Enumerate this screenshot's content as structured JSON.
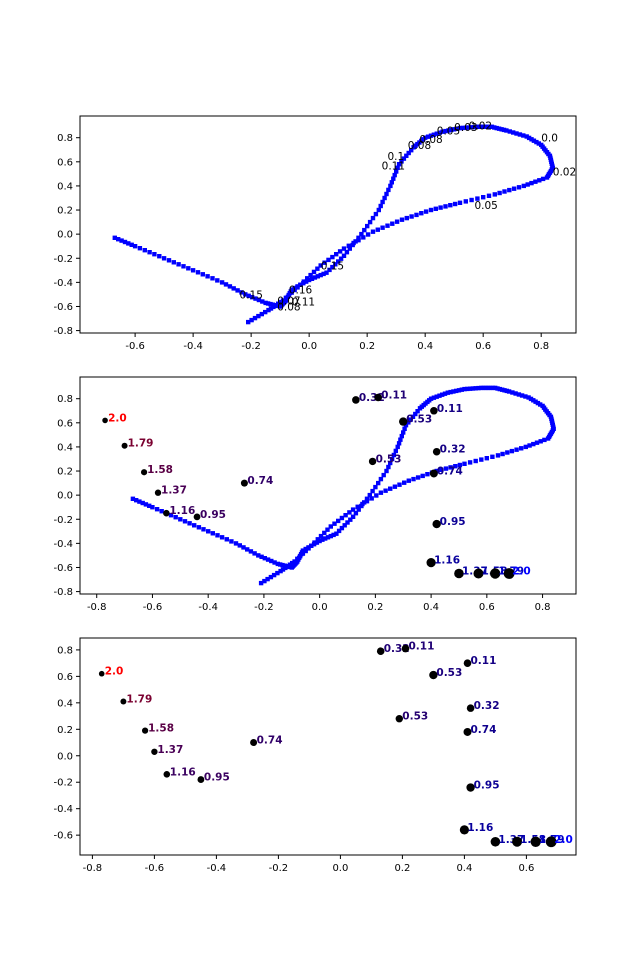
{
  "chart_data": [
    {
      "type": "scatter",
      "panel": "top",
      "title": "",
      "xlabel": "",
      "ylabel": "",
      "xlim": [
        -0.79,
        0.92
      ],
      "ylim": [
        -0.82,
        0.98
      ],
      "xticks": [
        "-0.6",
        "-0.4",
        "-0.2",
        "0.0",
        "0.2",
        "0.4",
        "0.6",
        "0.8"
      ],
      "yticks": [
        "-0.8",
        "-0.6",
        "-0.4",
        "-0.2",
        "0.0",
        "0.2",
        "0.4",
        "0.6",
        "0.8"
      ],
      "grid": false,
      "trajectory_color": "#0000ff",
      "annotations": [
        {
          "x": 0.8,
          "y": 0.8,
          "label": "0.0"
        },
        {
          "x": 0.84,
          "y": 0.52,
          "label": "0.02"
        },
        {
          "x": 0.55,
          "y": 0.9,
          "label": "0.02"
        },
        {
          "x": 0.5,
          "y": 0.89,
          "label": "0.03"
        },
        {
          "x": 0.44,
          "y": 0.86,
          "label": "0.05"
        },
        {
          "x": 0.38,
          "y": 0.79,
          "label": "0.08"
        },
        {
          "x": 0.34,
          "y": 0.74,
          "label": "0.08"
        },
        {
          "x": 0.57,
          "y": 0.24,
          "label": "0.05"
        },
        {
          "x": 0.27,
          "y": 0.65,
          "label": "0.1"
        },
        {
          "x": 0.25,
          "y": 0.57,
          "label": "0.11"
        },
        {
          "x": 0.04,
          "y": -0.26,
          "label": "0.15"
        },
        {
          "x": -0.24,
          "y": -0.5,
          "label": "0.15"
        },
        {
          "x": -0.07,
          "y": -0.46,
          "label": "0.16"
        },
        {
          "x": -0.11,
          "y": -0.55,
          "label": "0.07"
        },
        {
          "x": -0.06,
          "y": -0.56,
          "label": "0.11"
        },
        {
          "x": -0.11,
          "y": -0.6,
          "label": "0.08"
        }
      ]
    },
    {
      "type": "scatter",
      "panel": "middle",
      "title": "",
      "xlabel": "",
      "ylabel": "",
      "xlim": [
        -0.86,
        0.92
      ],
      "ylim": [
        -0.82,
        0.98
      ],
      "xticks": [
        "-0.8",
        "-0.6",
        "-0.4",
        "-0.2",
        "0.0",
        "0.2",
        "0.4",
        "0.6",
        "0.8"
      ],
      "yticks": [
        "-0.8",
        "-0.6",
        "-0.4",
        "-0.2",
        "0.0",
        "0.2",
        "0.4",
        "0.6",
        "0.8"
      ],
      "grid": false,
      "trajectory_color": "#0000ff",
      "points": [
        {
          "x": -0.77,
          "y": 0.62,
          "label": "2.0",
          "color": "#ff0000",
          "size": 2.8
        },
        {
          "x": -0.7,
          "y": 0.41,
          "label": "1.79",
          "color": "#7a0030",
          "size": 3.0
        },
        {
          "x": -0.63,
          "y": 0.19,
          "label": "1.58",
          "color": "#5a0045",
          "size": 3.1
        },
        {
          "x": -0.58,
          "y": 0.02,
          "label": "1.37",
          "color": "#4a0055",
          "size": 3.2
        },
        {
          "x": -0.55,
          "y": -0.15,
          "label": "1.16",
          "color": "#3a0060",
          "size": 3.3
        },
        {
          "x": -0.44,
          "y": -0.18,
          "label": "0.95",
          "color": "#3a0060",
          "size": 3.4
        },
        {
          "x": -0.27,
          "y": 0.1,
          "label": "0.74",
          "color": "#300068",
          "size": 3.5
        },
        {
          "x": 0.13,
          "y": 0.79,
          "label": "0.32",
          "color": "#200075",
          "size": 3.8
        },
        {
          "x": 0.21,
          "y": 0.81,
          "label": "0.11",
          "color": "#200075",
          "size": 3.8
        },
        {
          "x": 0.19,
          "y": 0.28,
          "label": "0.53",
          "color": "#250070",
          "size": 3.7
        },
        {
          "x": 0.3,
          "y": 0.61,
          "label": "0.53",
          "color": "#1a007d",
          "size": 4.2
        },
        {
          "x": 0.41,
          "y": 0.7,
          "label": "0.11",
          "color": "#150085",
          "size": 3.8
        },
        {
          "x": 0.42,
          "y": 0.36,
          "label": "0.32",
          "color": "#150085",
          "size": 3.8
        },
        {
          "x": 0.41,
          "y": 0.18,
          "label": "0.74",
          "color": "#10008d",
          "size": 4.0
        },
        {
          "x": 0.42,
          "y": -0.24,
          "label": "0.95",
          "color": "#0c0095",
          "size": 4.2
        },
        {
          "x": 0.4,
          "y": -0.56,
          "label": "1.16",
          "color": "#08009d",
          "size": 4.6
        },
        {
          "x": 0.5,
          "y": -0.65,
          "label": "1.37",
          "color": "#0600a5",
          "size": 4.8
        },
        {
          "x": 0.57,
          "y": -0.65,
          "label": "1.58",
          "color": "#0400ad",
          "size": 5.0
        },
        {
          "x": 0.63,
          "y": -0.65,
          "label": "1.79",
          "color": "#0200c5",
          "size": 5.2
        },
        {
          "x": 0.68,
          "y": -0.65,
          "label": "2.0",
          "color": "#0000ff",
          "size": 5.4
        }
      ]
    },
    {
      "type": "scatter",
      "panel": "bottom",
      "title": "",
      "xlabel": "",
      "ylabel": "",
      "xlim": [
        -0.84,
        0.76
      ],
      "ylim": [
        -0.75,
        0.89
      ],
      "xticks": [
        "-0.8",
        "-0.6",
        "-0.4",
        "-0.2",
        "0.0",
        "0.2",
        "0.4",
        "0.6"
      ],
      "yticks": [
        "-0.6",
        "-0.4",
        "-0.2",
        "0.0",
        "0.2",
        "0.4",
        "0.6",
        "0.8"
      ],
      "grid": false,
      "points": [
        {
          "x": -0.77,
          "y": 0.62,
          "label": "2.0",
          "color": "#ff0000",
          "size": 2.8
        },
        {
          "x": -0.7,
          "y": 0.41,
          "label": "1.79",
          "color": "#7a0030",
          "size": 3.0
        },
        {
          "x": -0.63,
          "y": 0.19,
          "label": "1.58",
          "color": "#5a0045",
          "size": 3.1
        },
        {
          "x": -0.6,
          "y": 0.03,
          "label": "1.37",
          "color": "#4a0055",
          "size": 3.2
        },
        {
          "x": -0.56,
          "y": -0.14,
          "label": "1.16",
          "color": "#3a0060",
          "size": 3.3
        },
        {
          "x": -0.45,
          "y": -0.18,
          "label": "0.95",
          "color": "#3a0060",
          "size": 3.4
        },
        {
          "x": -0.28,
          "y": 0.1,
          "label": "0.74",
          "color": "#300068",
          "size": 3.5
        },
        {
          "x": 0.13,
          "y": 0.79,
          "label": "0.32",
          "color": "#200075",
          "size": 3.8
        },
        {
          "x": 0.21,
          "y": 0.81,
          "label": "0.11",
          "color": "#200075",
          "size": 3.8
        },
        {
          "x": 0.19,
          "y": 0.28,
          "label": "0.53",
          "color": "#250070",
          "size": 3.7
        },
        {
          "x": 0.3,
          "y": 0.61,
          "label": "0.53",
          "color": "#1a007d",
          "size": 4.2
        },
        {
          "x": 0.41,
          "y": 0.7,
          "label": "0.11",
          "color": "#150085",
          "size": 3.8
        },
        {
          "x": 0.42,
          "y": 0.36,
          "label": "0.32",
          "color": "#150085",
          "size": 3.8
        },
        {
          "x": 0.41,
          "y": 0.18,
          "label": "0.74",
          "color": "#10008d",
          "size": 4.0
        },
        {
          "x": 0.42,
          "y": -0.24,
          "label": "0.95",
          "color": "#0c0095",
          "size": 4.2
        },
        {
          "x": 0.4,
          "y": -0.56,
          "label": "1.16",
          "color": "#08009d",
          "size": 4.6
        },
        {
          "x": 0.5,
          "y": -0.65,
          "label": "1.37",
          "color": "#0600a5",
          "size": 4.8
        },
        {
          "x": 0.57,
          "y": -0.65,
          "label": "1.58",
          "color": "#0400ad",
          "size": 5.0
        },
        {
          "x": 0.63,
          "y": -0.65,
          "label": "1.79",
          "color": "#0200c5",
          "size": 5.2
        },
        {
          "x": 0.68,
          "y": -0.65,
          "label": "2.0",
          "color": "#0000ff",
          "size": 5.4
        }
      ]
    }
  ]
}
